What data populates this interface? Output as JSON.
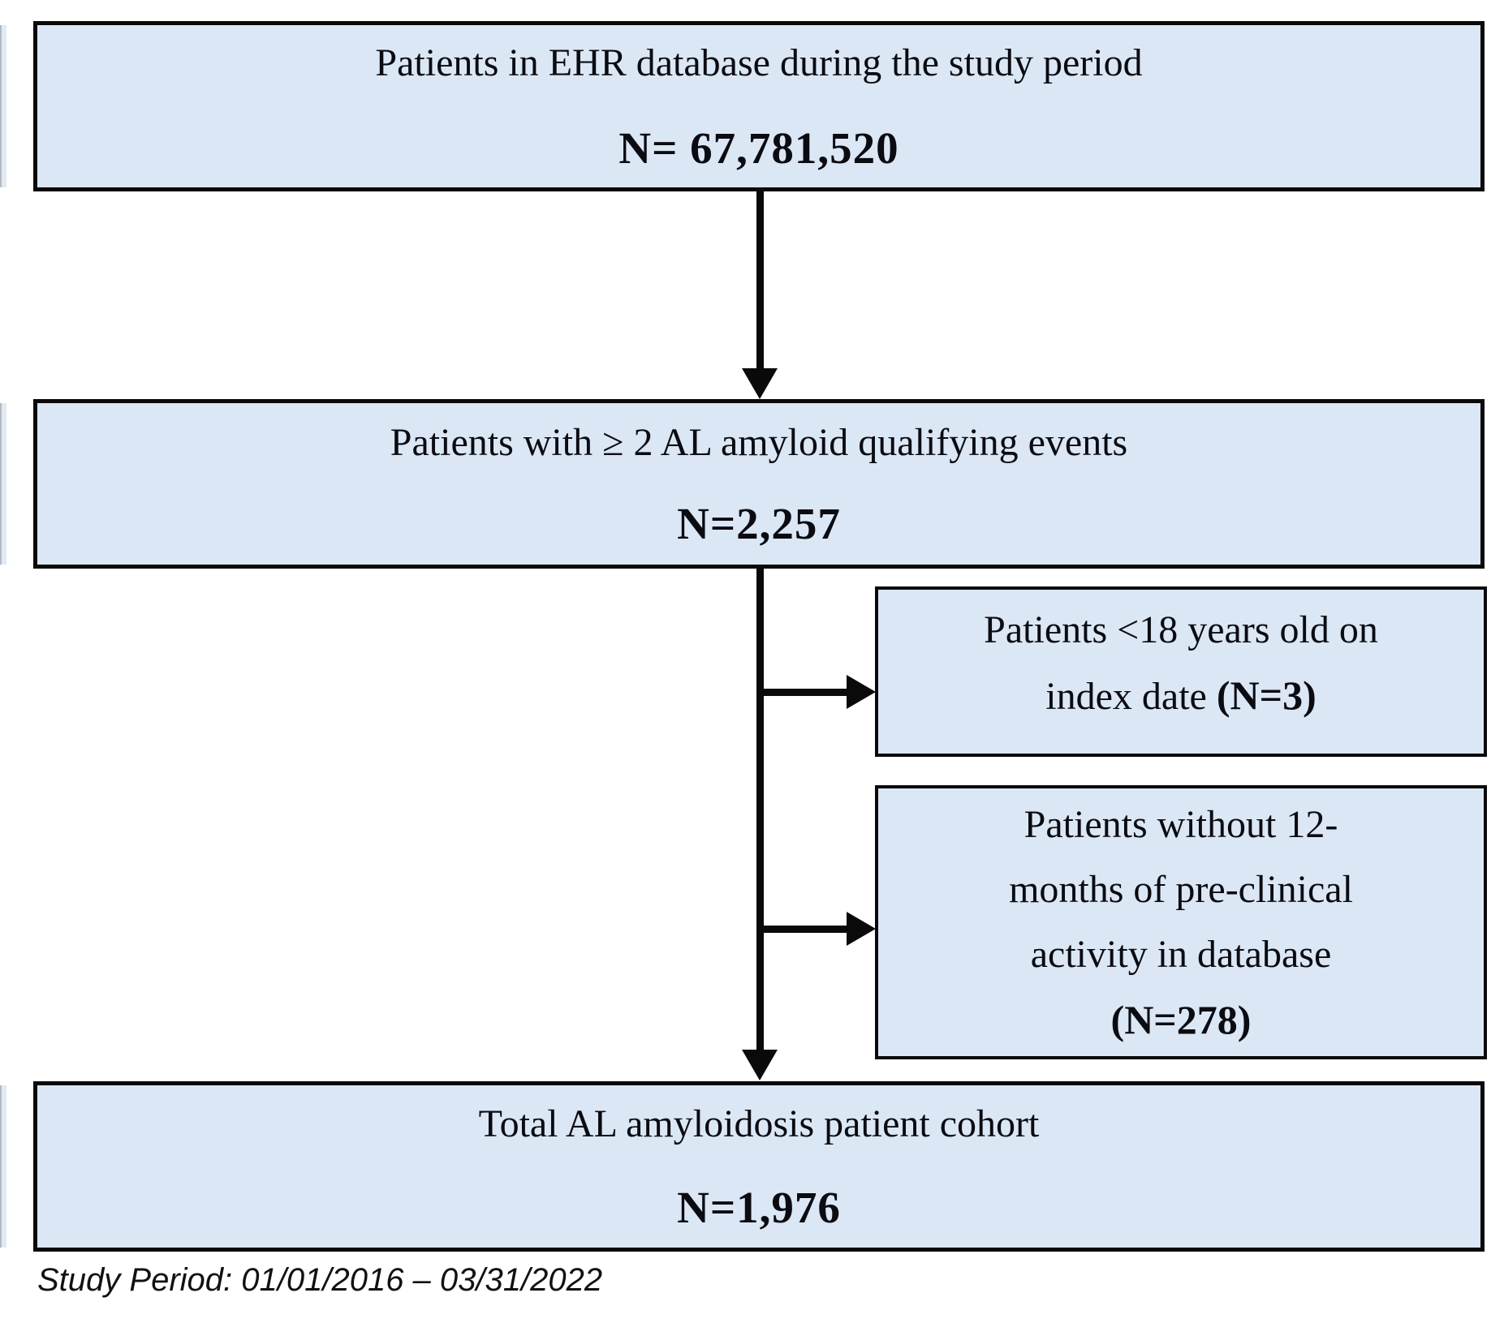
{
  "figure": {
    "boxes": {
      "top": {
        "title": "Patients in EHR database during the study period",
        "n": "N= 67,781,520"
      },
      "qualifying": {
        "title": "Patients with ≥ 2 AL amyloid qualifying events",
        "n": "N=2,257"
      },
      "exclusion_age": {
        "line1": "Patients <18 years old on",
        "line2_prefix": "index date ",
        "n": "(N=3)"
      },
      "exclusion_preclinical": {
        "line1": "Patients without 12-",
        "line2": "months of pre-clinical",
        "line3": "activity in database",
        "n": "(N=278)"
      },
      "total": {
        "title": "Total AL amyloidosis patient cohort",
        "n": "N=1,976"
      }
    },
    "footer": "Study Period: 01/01/2016 – 03/31/2022"
  },
  "colors": {
    "box_fill": "#dbe7f4",
    "box_border": "#0a0a0a",
    "arrow": "#0a0a0a",
    "text": "#0b0b12",
    "background": "#ffffff"
  }
}
